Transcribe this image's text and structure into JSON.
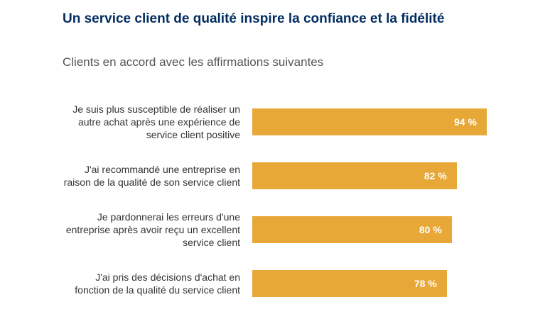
{
  "chart_data": {
    "type": "bar",
    "orientation": "horizontal",
    "title": "Un service client de qualité inspire la confiance et la fidélité",
    "subtitle": "Clients en accord avec les affirmations suivantes",
    "categories": [
      "Je suis plus susceptible de réaliser un autre achat après une expérience de service client positive",
      "J'ai recommandé une entreprise en raison de la qualité de son service client",
      "Je pardonnerai les erreurs d'une entreprise après avoir reçu un excellent service client",
      "J'ai pris des décisions d'achat en fonction de la qualité du service client"
    ],
    "values": [
      94,
      82,
      80,
      78
    ],
    "value_labels": [
      "94 %",
      "82 %",
      "80 %",
      "78 %"
    ],
    "color": "#e8a838"
  }
}
